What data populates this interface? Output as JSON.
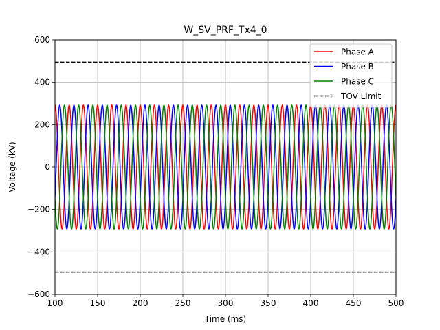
{
  "chart_data": {
    "type": "line",
    "title": "W_SV_PRF_Tx4_0",
    "xlabel": "Time (ms)",
    "ylabel": "Voltage (kV)",
    "xlim": [
      100,
      500
    ],
    "ylim": [
      -600,
      600
    ],
    "xticks": [
      100,
      150,
      200,
      250,
      300,
      350,
      400,
      450,
      500
    ],
    "yticks": [
      -600,
      -400,
      -200,
      0,
      200,
      400,
      600
    ],
    "xtick_labels": [
      "100",
      "150",
      "200",
      "250",
      "300",
      "350",
      "400",
      "450",
      "500"
    ],
    "ytick_labels": [
      "−600",
      "−400",
      "−200",
      "0",
      "200",
      "400",
      "600"
    ],
    "grid": true,
    "legend_position": "top-right",
    "waveform": {
      "amplitude_kv": 292,
      "frequency_hz": 60,
      "x_start": 100,
      "x_end": 500
    },
    "series": [
      {
        "name": "Phase A",
        "color": "#ff0000",
        "style": "solid",
        "phase_deg": 90
      },
      {
        "name": "Phase B",
        "color": "#0000ff",
        "style": "solid",
        "phase_deg": -30
      },
      {
        "name": "Phase C",
        "color": "#008000",
        "style": "solid",
        "phase_deg": 210
      }
    ],
    "limits": [
      {
        "name": "TOV Limit",
        "color": "#000000",
        "style": "dashed",
        "values": [
          495,
          -495
        ]
      }
    ]
  }
}
